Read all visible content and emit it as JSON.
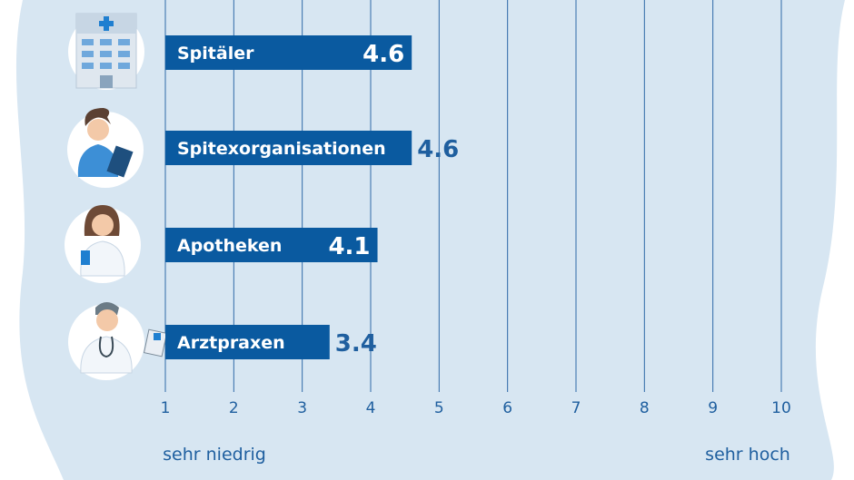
{
  "chart_data": {
    "type": "bar",
    "orientation": "horizontal",
    "categories": [
      "Spitäler",
      "Spitexorganisationen",
      "Apotheken",
      "Arztpraxen"
    ],
    "values": [
      4.6,
      4.6,
      4.1,
      3.4
    ],
    "value_labels": [
      "4.6",
      "4.6",
      "4.1",
      "3.4"
    ],
    "xlim": [
      1,
      10
    ],
    "x_ticks": [
      "1",
      "2",
      "3",
      "4",
      "5",
      "6",
      "7",
      "8",
      "9",
      "10"
    ],
    "x_scale_low_label": "sehr niedrig",
    "x_scale_high_label": "sehr hoch",
    "grid": "vertical",
    "icons": [
      "hospital-building-icon",
      "nurse-with-clipboard-icon",
      "pharmacist-icon",
      "doctor-with-stethoscope-icon"
    ],
    "colors": {
      "bar": "#0a5aa0",
      "bar_text": "#ffffff",
      "value_text": "#1f5f9f",
      "grid": "#2f6aa8",
      "background_blob": "#d7e6f2",
      "icon_circle": "#ffffff"
    }
  }
}
